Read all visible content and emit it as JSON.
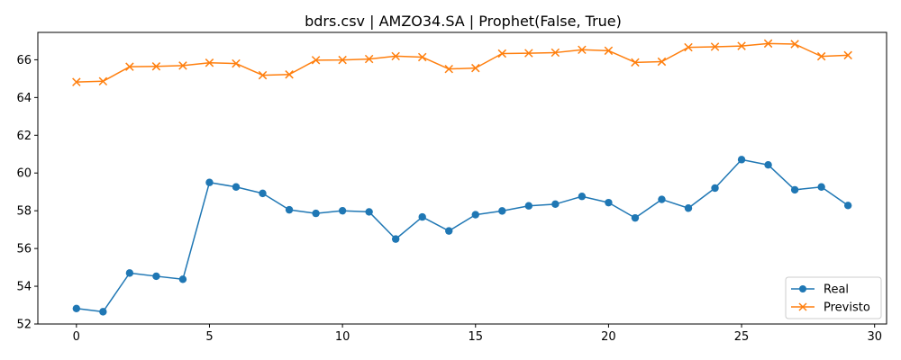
{
  "chart_data": {
    "type": "line",
    "title": "bdrs.csv | AMZO34.SA | Prophet(False, True)",
    "xlabel": "",
    "ylabel": "",
    "xlim": [
      -1.45,
      30.45
    ],
    "ylim": [
      52.0,
      67.45
    ],
    "xticks": [
      0,
      5,
      10,
      15,
      20,
      25,
      30
    ],
    "yticks": [
      52,
      54,
      56,
      58,
      60,
      62,
      64,
      66
    ],
    "grid": false,
    "legend_position": "lower-right",
    "x": [
      0,
      1,
      2,
      3,
      4,
      5,
      6,
      7,
      8,
      9,
      10,
      11,
      12,
      13,
      14,
      15,
      16,
      17,
      18,
      19,
      20,
      21,
      22,
      23,
      24,
      25,
      26,
      27,
      28,
      29
    ],
    "series": [
      {
        "name": "Real",
        "color": "#1f77b4",
        "marker": "circle",
        "values": [
          52.82,
          52.65,
          54.7,
          54.53,
          54.37,
          59.5,
          59.26,
          58.92,
          58.05,
          57.86,
          58.0,
          57.94,
          56.5,
          57.67,
          56.93,
          57.79,
          57.99,
          58.26,
          58.35,
          58.76,
          58.43,
          57.62,
          58.6,
          58.14,
          59.2,
          60.71,
          60.43,
          59.11,
          59.26,
          58.28
        ]
      },
      {
        "name": "Previsto",
        "color": "#ff7f0e",
        "marker": "x",
        "values": [
          64.82,
          64.86,
          65.63,
          65.65,
          65.69,
          65.84,
          65.8,
          65.18,
          65.22,
          65.98,
          65.99,
          66.04,
          66.19,
          66.14,
          65.51,
          65.56,
          66.33,
          66.35,
          66.38,
          66.53,
          66.48,
          65.86,
          65.9,
          66.66,
          66.69,
          66.73,
          66.86,
          66.83,
          66.18,
          66.24
        ]
      }
    ]
  }
}
